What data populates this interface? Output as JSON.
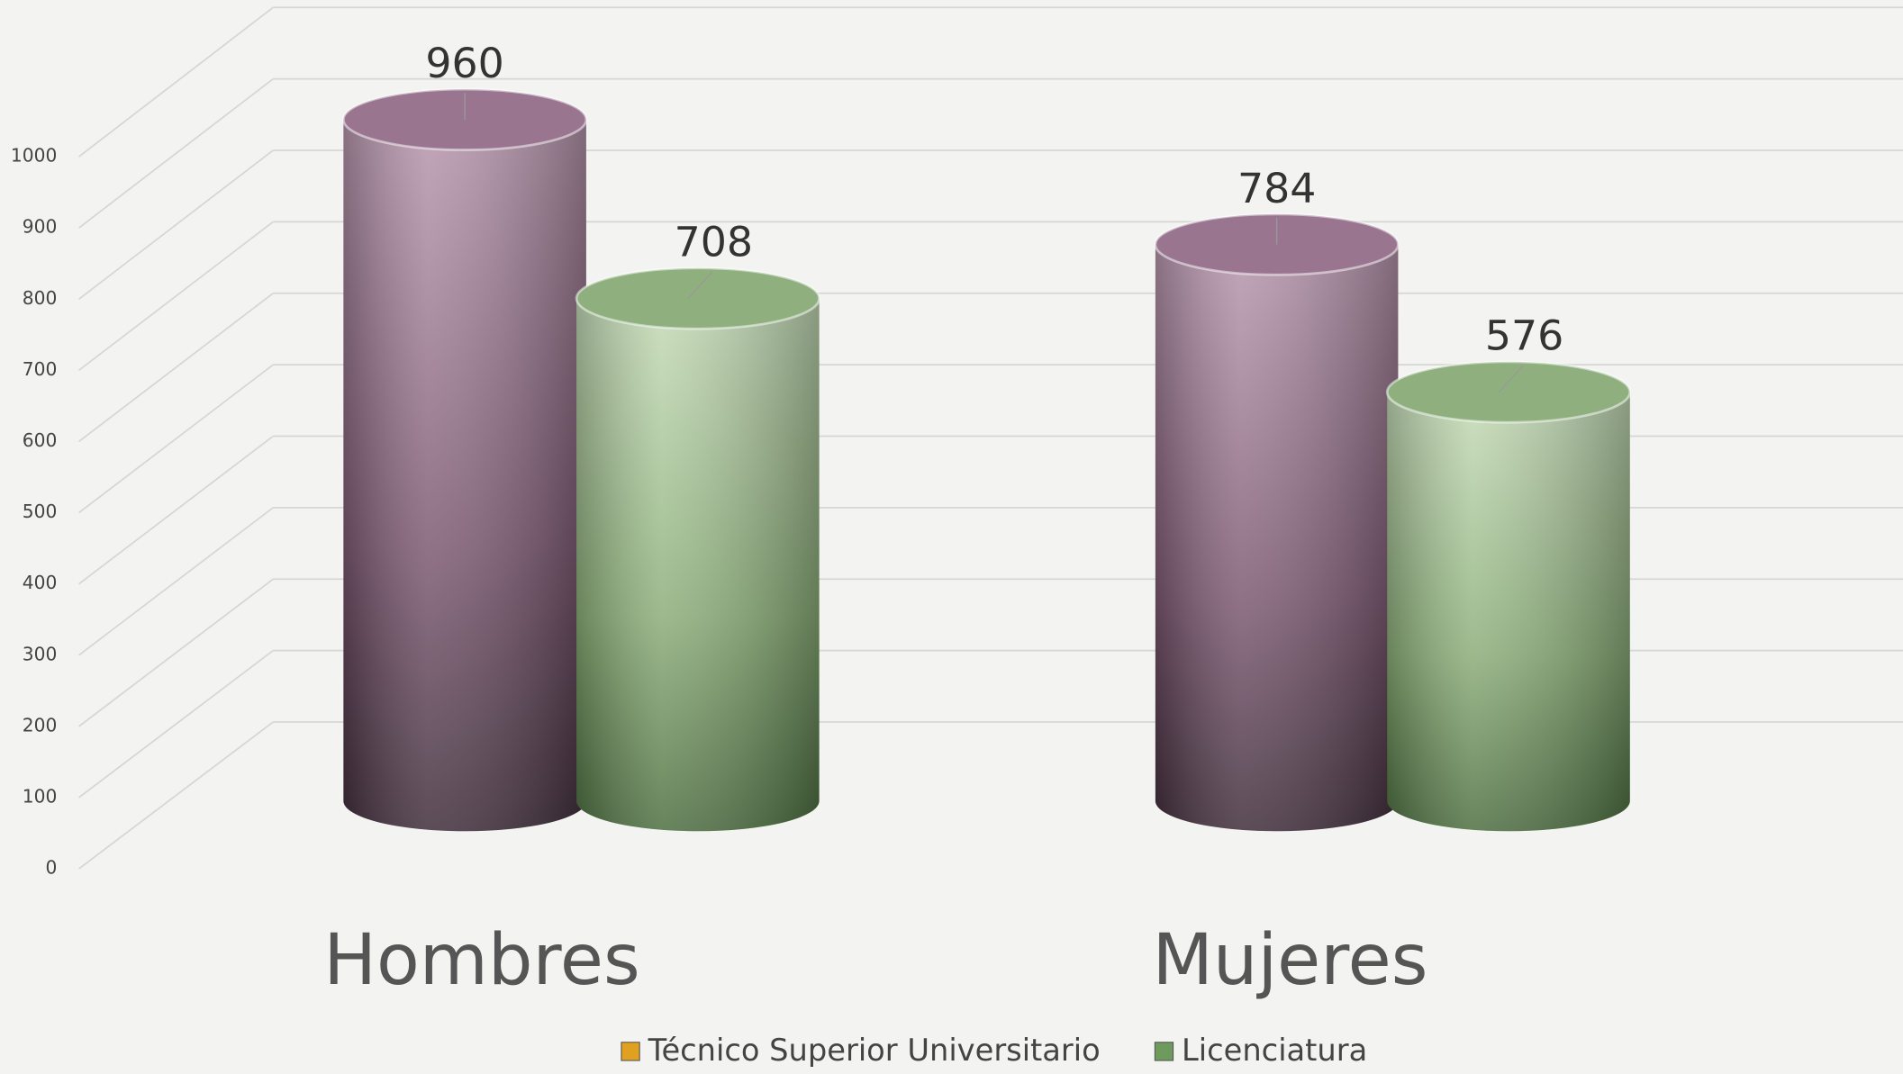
{
  "chart_data": {
    "type": "cylinder-bar",
    "categories": [
      "Hombres",
      "Mujeres"
    ],
    "series": [
      {
        "name": "Técnico Superior Universitario",
        "color": "#9a7590",
        "legend_color": "#e0a020",
        "values": [
          960,
          784
        ]
      },
      {
        "name": "Licenciatura",
        "color": "#8fb07e",
        "legend_color": "#6e9a5e",
        "values": [
          708,
          576
        ]
      }
    ],
    "ylim": [
      0,
      1000
    ],
    "yticks": [
      0,
      100,
      200,
      300,
      400,
      500,
      600,
      700,
      800,
      900,
      1000
    ],
    "grid": true
  }
}
